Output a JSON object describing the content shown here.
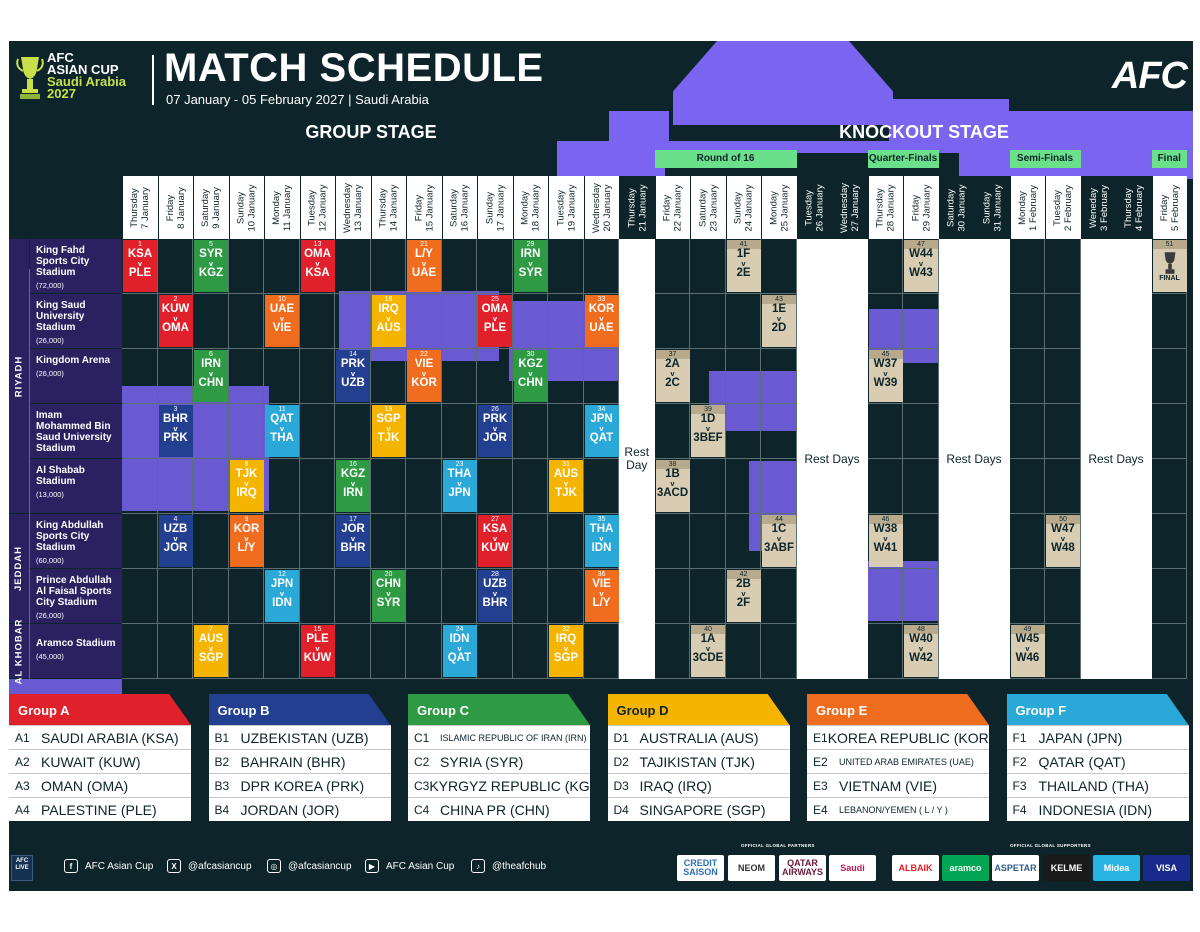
{
  "header": {
    "logo_line1": "AFC",
    "logo_line2": "ASIAN CUP",
    "logo_line3": "Saudi Arabia",
    "logo_line4": "2027",
    "title": "MATCH SCHEDULE",
    "subtitle": "07 January - 05 February 2027 | Saudi Arabia",
    "brand": "AFC"
  },
  "stages": {
    "group": "GROUP STAGE",
    "knockout": "KNOCKOUT STAGE"
  },
  "rounds": [
    "Round of 16",
    "Quarter-Finals",
    "Semi-Finals",
    "Final"
  ],
  "days": [
    [
      "Thursday",
      "7 January"
    ],
    [
      "Friday",
      "8 January"
    ],
    [
      "Saturday",
      "9 January"
    ],
    [
      "Sunday",
      "10 January"
    ],
    [
      "Monday",
      "11 January"
    ],
    [
      "Tuesday",
      "12 January"
    ],
    [
      "Wednesday",
      "13 January"
    ],
    [
      "Thursday",
      "14 January"
    ],
    [
      "Friday",
      "15 January"
    ],
    [
      "Saturday",
      "16 January"
    ],
    [
      "Sunday",
      "17 January"
    ],
    [
      "Monday",
      "18 January"
    ],
    [
      "Tuesday",
      "19 January"
    ],
    [
      "Wednesday",
      "20 January"
    ],
    [
      "Thursday",
      "21 January"
    ],
    [
      "Friday",
      "22 January"
    ],
    [
      "Saturday",
      "23 January"
    ],
    [
      "Sunday",
      "24 January"
    ],
    [
      "Monday",
      "25 January"
    ],
    [
      "Tuesday",
      "26 January"
    ],
    [
      "Wednesday",
      "27 January"
    ],
    [
      "Thursday",
      "28 January"
    ],
    [
      "Friday",
      "29 January"
    ],
    [
      "Saturday",
      "30 January"
    ],
    [
      "Sunday",
      "31 January"
    ],
    [
      "Monday",
      "1 February"
    ],
    [
      "Tuesday",
      "2 February"
    ],
    [
      "Weneday",
      "3 February"
    ],
    [
      "Thursday",
      "4 February"
    ],
    [
      "Friday",
      "5 February"
    ]
  ],
  "cities": [
    "RIYADH",
    "JEDDAH",
    "AL KHOBAR"
  ],
  "venues": [
    {
      "name": "King Fahd Sports City Stadium",
      "capacity": "(72,000)"
    },
    {
      "name": "King Saud University Stadium",
      "capacity": "(26,000)"
    },
    {
      "name": "Kingdom Arena",
      "capacity": "(26,000)"
    },
    {
      "name": "Imam Mohammed Bin Saud University Stadium",
      "capacity": "(25,000)"
    },
    {
      "name": "Al Shabab Stadium",
      "capacity": "(13,000)"
    },
    {
      "name": "King Abdullah Sports City Stadium",
      "capacity": "(60,000)"
    },
    {
      "name": "Prince Abdullah Al Faisal Sports City Stadium",
      "capacity": "(26,000)"
    },
    {
      "name": "Aramco Stadium",
      "capacity": "(45,000)"
    }
  ],
  "rest_labels": {
    "single": "Rest Day",
    "multi": "Rest Days"
  },
  "versus": "v",
  "group_matches": [
    {
      "no": "1",
      "day": 0,
      "venue": 0,
      "home": "KSA",
      "away": "PLE",
      "group": "A"
    },
    {
      "no": "2",
      "day": 1,
      "venue": 1,
      "home": "KUW",
      "away": "OMA",
      "group": "A"
    },
    {
      "no": "3",
      "day": 1,
      "venue": 3,
      "home": "BHR",
      "away": "PRK",
      "group": "B"
    },
    {
      "no": "4",
      "day": 1,
      "venue": 5,
      "home": "UZB",
      "away": "JOR",
      "group": "B"
    },
    {
      "no": "5",
      "day": 2,
      "venue": 0,
      "home": "SYR",
      "away": "KGZ",
      "group": "C"
    },
    {
      "no": "6",
      "day": 2,
      "venue": 2,
      "home": "IRN",
      "away": "CHN",
      "group": "C"
    },
    {
      "no": "7",
      "day": 2,
      "venue": 7,
      "home": "AUS",
      "away": "SGP",
      "group": "D"
    },
    {
      "no": "8",
      "day": 3,
      "venue": 4,
      "home": "TJK",
      "away": "IRQ",
      "group": "D"
    },
    {
      "no": "9",
      "day": 3,
      "venue": 5,
      "home": "KOR",
      "away": "L/Y",
      "group": "E"
    },
    {
      "no": "10",
      "day": 4,
      "venue": 1,
      "home": "UAE",
      "away": "VIE",
      "group": "E"
    },
    {
      "no": "11",
      "day": 4,
      "venue": 3,
      "home": "QAT",
      "away": "THA",
      "group": "F"
    },
    {
      "no": "12",
      "day": 4,
      "venue": 6,
      "home": "JPN",
      "away": "IDN",
      "group": "F"
    },
    {
      "no": "13",
      "day": 5,
      "venue": 0,
      "home": "OMA",
      "away": "KSA",
      "group": "A"
    },
    {
      "no": "14",
      "day": 6,
      "venue": 2,
      "home": "PRK",
      "away": "UZB",
      "group": "B"
    },
    {
      "no": "15",
      "day": 5,
      "venue": 7,
      "home": "PLE",
      "away": "KUW",
      "group": "A"
    },
    {
      "no": "16",
      "day": 6,
      "venue": 4,
      "home": "KGZ",
      "away": "IRN",
      "group": "C"
    },
    {
      "no": "17",
      "day": 6,
      "venue": 5,
      "home": "JOR",
      "away": "BHR",
      "group": "B"
    },
    {
      "no": "18",
      "day": 7,
      "venue": 1,
      "home": "IRQ",
      "away": "AUS",
      "group": "D"
    },
    {
      "no": "19",
      "day": 7,
      "venue": 3,
      "home": "SGP",
      "away": "TJK",
      "group": "D"
    },
    {
      "no": "20",
      "day": 7,
      "venue": 6,
      "home": "CHN",
      "away": "SYR",
      "group": "C"
    },
    {
      "no": "21",
      "day": 8,
      "venue": 0,
      "home": "L/Y",
      "away": "UAE",
      "group": "E"
    },
    {
      "no": "22",
      "day": 8,
      "venue": 2,
      "home": "VIE",
      "away": "KOR",
      "group": "E"
    },
    {
      "no": "23",
      "day": 9,
      "venue": 4,
      "home": "THA",
      "away": "JPN",
      "group": "F"
    },
    {
      "no": "24",
      "day": 9,
      "venue": 7,
      "home": "IDN",
      "away": "QAT",
      "group": "F"
    },
    {
      "no": "25",
      "day": 10,
      "venue": 1,
      "home": "OMA",
      "away": "PLE",
      "group": "A"
    },
    {
      "no": "26",
      "day": 10,
      "venue": 3,
      "home": "PRK",
      "away": "JOR",
      "group": "B"
    },
    {
      "no": "27",
      "day": 10,
      "venue": 5,
      "home": "KSA",
      "away": "KUW",
      "group": "A"
    },
    {
      "no": "28",
      "day": 10,
      "venue": 6,
      "home": "UZB",
      "away": "BHR",
      "group": "B"
    },
    {
      "no": "29",
      "day": 11,
      "venue": 0,
      "home": "IRN",
      "away": "SYR",
      "group": "C"
    },
    {
      "no": "30",
      "day": 11,
      "venue": 2,
      "home": "KGZ",
      "away": "CHN",
      "group": "C"
    },
    {
      "no": "31",
      "day": 12,
      "venue": 4,
      "home": "AUS",
      "away": "TJK",
      "group": "D"
    },
    {
      "no": "32",
      "day": 12,
      "venue": 7,
      "home": "IRQ",
      "away": "SGP",
      "group": "D"
    },
    {
      "no": "33",
      "day": 13,
      "venue": 1,
      "home": "KOR",
      "away": "UAE",
      "group": "E"
    },
    {
      "no": "34",
      "day": 13,
      "venue": 3,
      "home": "JPN",
      "away": "QAT",
      "group": "F"
    },
    {
      "no": "35",
      "day": 13,
      "venue": 5,
      "home": "THA",
      "away": "IDN",
      "group": "F"
    },
    {
      "no": "36",
      "day": 13,
      "venue": 6,
      "home": "VIE",
      "away": "L/Y",
      "group": "E"
    }
  ],
  "knockout_matches": [
    {
      "no": "37",
      "day": 15,
      "venue": 2,
      "home": "2A",
      "away": "2C"
    },
    {
      "no": "38",
      "day": 15,
      "venue": 4,
      "home": "1B",
      "away": "3ACD"
    },
    {
      "no": "39",
      "day": 16,
      "venue": 3,
      "home": "1D",
      "away": "3BEF"
    },
    {
      "no": "40",
      "day": 16,
      "venue": 7,
      "home": "1A",
      "away": "3CDE"
    },
    {
      "no": "41",
      "day": 17,
      "venue": 0,
      "home": "1F",
      "away": "2E"
    },
    {
      "no": "42",
      "day": 17,
      "venue": 6,
      "home": "2B",
      "away": "2F"
    },
    {
      "no": "43",
      "day": 18,
      "venue": 1,
      "home": "1E",
      "away": "2D"
    },
    {
      "no": "44",
      "day": 18,
      "venue": 5,
      "home": "1C",
      "away": "3ABF"
    },
    {
      "no": "45",
      "day": 21,
      "venue": 2,
      "home": "W37",
      "away": "W39"
    },
    {
      "no": "46",
      "day": 21,
      "venue": 5,
      "home": "W38",
      "away": "W41"
    },
    {
      "no": "47",
      "day": 22,
      "venue": 0,
      "home": "W44",
      "away": "W43"
    },
    {
      "no": "48",
      "day": 22,
      "venue": 7,
      "home": "W40",
      "away": "W42"
    },
    {
      "no": "49",
      "day": 25,
      "venue": 7,
      "home": "W45",
      "away": "W46"
    },
    {
      "no": "50",
      "day": 26,
      "venue": 5,
      "home": "W47",
      "away": "W48"
    },
    {
      "no": "51",
      "day": 29,
      "venue": 0,
      "home": "",
      "away": "FINAL"
    }
  ],
  "groups": [
    {
      "name": "Group A",
      "teams": [
        [
          "A1",
          "SAUDI ARABIA (KSA)"
        ],
        [
          "A2",
          "KUWAIT (KUW)"
        ],
        [
          "A3",
          "OMAN (OMA)"
        ],
        [
          "A4",
          "PALESTINE (PLE)"
        ]
      ]
    },
    {
      "name": "Group B",
      "teams": [
        [
          "B1",
          "UZBEKISTAN (UZB)"
        ],
        [
          "B2",
          "BAHRAIN (BHR)"
        ],
        [
          "B3",
          "DPR KOREA (PRK)"
        ],
        [
          "B4",
          "JORDAN (JOR)"
        ]
      ]
    },
    {
      "name": "Group C",
      "teams": [
        [
          "C1",
          "ISLAMIC REPUBLIC OF IRAN (IRN)"
        ],
        [
          "C2",
          "SYRIA (SYR)"
        ],
        [
          "C3",
          "KYRGYZ REPUBLIC (KGZ)"
        ],
        [
          "C4",
          "CHINA PR (CHN)"
        ]
      ]
    },
    {
      "name": "Group D",
      "teams": [
        [
          "D1",
          "AUSTRALIA (AUS)"
        ],
        [
          "D2",
          "TAJIKISTAN (TJK)"
        ],
        [
          "D3",
          "IRAQ (IRQ)"
        ],
        [
          "D4",
          "SINGAPORE (SGP)"
        ]
      ]
    },
    {
      "name": "Group E",
      "teams": [
        [
          "E1",
          "KOREA REPUBLIC (KOR)"
        ],
        [
          "E2",
          "UNITED ARAB EMIRATES (UAE)"
        ],
        [
          "E3",
          "VIETNAM (VIE)"
        ],
        [
          "E4",
          "LEBANON/YEMEN ( L / Y )"
        ]
      ]
    },
    {
      "name": "Group F",
      "teams": [
        [
          "F1",
          "JAPAN (JPN)"
        ],
        [
          "F2",
          "QATAR (QAT)"
        ],
        [
          "F3",
          "THAILAND (THA)"
        ],
        [
          "F4",
          "INDONESIA (IDN)"
        ]
      ]
    }
  ],
  "colors": {
    "A": "#e0202a",
    "B": "#233f8f",
    "C": "#2e9a44",
    "D": "#f4b400",
    "E": "#f06d1f",
    "F": "#2aa9d8"
  },
  "footer": {
    "live": "AFC LIVE",
    "social": [
      {
        "icon": "facebook-icon",
        "glyph": "f",
        "label": "AFC Asian Cup"
      },
      {
        "icon": "x-icon",
        "glyph": "X",
        "label": "@afcasiancup"
      },
      {
        "icon": "instagram-icon",
        "glyph": "◎",
        "label": "@afcasiancup"
      },
      {
        "icon": "youtube-icon",
        "glyph": "▶",
        "label": "AFC Asian Cup"
      },
      {
        "icon": "tiktok-icon",
        "glyph": "♪",
        "label": "@theafchub"
      }
    ],
    "partners_label": "OFFICIAL GLOBAL PARTNERS",
    "supporters_label": "OFFICIAL GLOBAL SUPPORTERS",
    "partners": [
      "CREDIT SAISON",
      "NEOM",
      "QATAR AIRWAYS",
      "Saudi"
    ],
    "supporters": [
      "ALBAIK",
      "aramco",
      "ASPETAR",
      "KELME",
      "Midea",
      "VISA"
    ]
  }
}
